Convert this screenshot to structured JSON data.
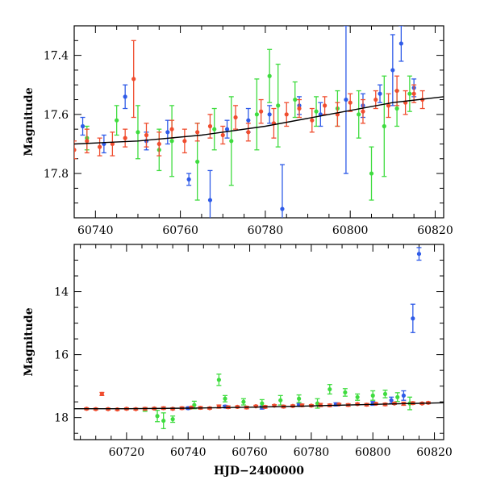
{
  "chart_data": [
    {
      "type": "scatter",
      "title": "",
      "xlabel": "",
      "ylabel": "Magnitude",
      "xlim": [
        60735,
        60822
      ],
      "ylim": [
        17.3,
        17.95
      ],
      "y_inverted": true,
      "xticks": [
        60740,
        60760,
        60780,
        60800,
        60820
      ],
      "yticks": [
        17.4,
        17.6,
        17.8
      ],
      "grid": false,
      "legend": "none",
      "series": [
        {
          "color": "#2f5be8",
          "points": [
            [
              60737,
              17.64,
              0.03
            ],
            [
              60742,
              17.7,
              0.03
            ],
            [
              60747,
              17.54,
              0.04
            ],
            [
              60752,
              17.69,
              0.03
            ],
            [
              60757,
              17.66,
              0.04
            ],
            [
              60762,
              17.82,
              0.02
            ],
            [
              60767,
              17.89,
              0.1
            ],
            [
              60771,
              17.65,
              0.03
            ],
            [
              60776,
              17.62,
              0.04
            ],
            [
              60781,
              17.6,
              0.03
            ],
            [
              60784,
              17.92,
              0.15
            ],
            [
              60788,
              17.57,
              0.03
            ],
            [
              60793,
              17.6,
              0.04
            ],
            [
              60799,
              17.55,
              0.25
            ],
            [
              60803,
              17.57,
              0.04
            ],
            [
              60807,
              17.53,
              0.03
            ],
            [
              60810,
              17.45,
              0.12
            ],
            [
              60812,
              17.36,
              0.06
            ],
            [
              60815,
              17.51,
              0.03
            ]
          ]
        },
        {
          "color": "#3fdc3f",
          "points": [
            [
              60738,
              17.68,
              0.04
            ],
            [
              60745,
              17.62,
              0.05
            ],
            [
              60750,
              17.66,
              0.09
            ],
            [
              60755,
              17.72,
              0.07
            ],
            [
              60758,
              17.69,
              0.12
            ],
            [
              60764,
              17.76,
              0.13
            ],
            [
              60768,
              17.65,
              0.07
            ],
            [
              60772,
              17.69,
              0.15
            ],
            [
              60778,
              17.6,
              0.12
            ],
            [
              60781,
              17.47,
              0.09
            ],
            [
              60783,
              17.57,
              0.14
            ],
            [
              60787,
              17.55,
              0.06
            ],
            [
              60792,
              17.59,
              0.05
            ],
            [
              60797,
              17.58,
              0.06
            ],
            [
              60802,
              17.6,
              0.08
            ],
            [
              60805,
              17.8,
              0.09
            ],
            [
              60808,
              17.64,
              0.17
            ],
            [
              60811,
              17.58,
              0.06
            ],
            [
              60814,
              17.53,
              0.06
            ]
          ]
        },
        {
          "color": "#f04d2f",
          "points": [
            [
              60735,
              17.72,
              0.03
            ],
            [
              60738,
              17.69,
              0.04
            ],
            [
              60741,
              17.71,
              0.03
            ],
            [
              60744,
              17.7,
              0.04
            ],
            [
              60747,
              17.68,
              0.03
            ],
            [
              60749,
              17.48,
              0.13
            ],
            [
              60752,
              17.67,
              0.04
            ],
            [
              60755,
              17.7,
              0.04
            ],
            [
              60758,
              17.65,
              0.03
            ],
            [
              60761,
              17.69,
              0.04
            ],
            [
              60764,
              17.66,
              0.03
            ],
            [
              60767,
              17.64,
              0.04
            ],
            [
              60770,
              17.67,
              0.03
            ],
            [
              60773,
              17.61,
              0.04
            ],
            [
              60776,
              17.66,
              0.03
            ],
            [
              60779,
              17.59,
              0.04
            ],
            [
              60782,
              17.63,
              0.05
            ],
            [
              60785,
              17.6,
              0.04
            ],
            [
              60788,
              17.58,
              0.03
            ],
            [
              60791,
              17.62,
              0.04
            ],
            [
              60794,
              17.57,
              0.03
            ],
            [
              60797,
              17.6,
              0.04
            ],
            [
              60800,
              17.56,
              0.03
            ],
            [
              60803,
              17.59,
              0.04
            ],
            [
              60806,
              17.55,
              0.03
            ],
            [
              60809,
              17.57,
              0.04
            ],
            [
              60811,
              17.52,
              0.05
            ],
            [
              60813,
              17.56,
              0.04
            ],
            [
              60815,
              17.53,
              0.03
            ],
            [
              60817,
              17.55,
              0.03
            ]
          ]
        }
      ],
      "model_curve": [
        [
          60735,
          17.7
        ],
        [
          60750,
          17.69
        ],
        [
          60765,
          17.67
        ],
        [
          60780,
          17.64
        ],
        [
          60795,
          17.6
        ],
        [
          60810,
          17.56
        ],
        [
          60822,
          17.54
        ]
      ]
    },
    {
      "type": "scatter",
      "title": "",
      "xlabel": "HJD−2400000",
      "ylabel": "Magnitude",
      "xlim": [
        60703,
        60823
      ],
      "ylim": [
        12.5,
        18.7
      ],
      "y_inverted": true,
      "xticks": [
        60720,
        60740,
        60760,
        60780,
        60800,
        60820
      ],
      "yticks": [
        14,
        16,
        18
      ],
      "grid": false,
      "legend": "none",
      "series": [
        {
          "color": "#2f5be8",
          "points": [
            [
              60740,
              17.7,
              0.04
            ],
            [
              60752,
              17.65,
              0.04
            ],
            [
              60764,
              17.68,
              0.05
            ],
            [
              60776,
              17.6,
              0.04
            ],
            [
              60788,
              17.58,
              0.05
            ],
            [
              60800,
              17.55,
              0.06
            ],
            [
              60806,
              17.45,
              0.1
            ],
            [
              60810,
              17.3,
              0.15
            ],
            [
              60813,
              14.85,
              0.45
            ],
            [
              60815,
              12.8,
              0.2
            ]
          ]
        },
        {
          "color": "#3fdc3f",
          "points": [
            [
              60726,
              17.75,
              0.05
            ],
            [
              60730,
              17.95,
              0.18
            ],
            [
              60732,
              18.1,
              0.25
            ],
            [
              60735,
              18.05,
              0.1
            ],
            [
              60742,
              17.6,
              0.12
            ],
            [
              60750,
              16.8,
              0.18
            ],
            [
              60752,
              17.4,
              0.1
            ],
            [
              60758,
              17.5,
              0.1
            ],
            [
              60764,
              17.55,
              0.12
            ],
            [
              60770,
              17.45,
              0.15
            ],
            [
              60776,
              17.4,
              0.12
            ],
            [
              60782,
              17.55,
              0.15
            ],
            [
              60786,
              17.1,
              0.15
            ],
            [
              60791,
              17.2,
              0.12
            ],
            [
              60795,
              17.35,
              0.1
            ],
            [
              60800,
              17.3,
              0.15
            ],
            [
              60804,
              17.25,
              0.12
            ],
            [
              60808,
              17.35,
              0.14
            ],
            [
              60812,
              17.55,
              0.2
            ]
          ]
        },
        {
          "color": "#f04d2f",
          "points": [
            [
              60707,
              17.72,
              0.03
            ],
            [
              60710,
              17.73,
              0.03
            ],
            [
              60712,
              17.25,
              0.05
            ],
            [
              60714,
              17.73,
              0.03
            ],
            [
              60717,
              17.74,
              0.03
            ],
            [
              60720,
              17.72,
              0.03
            ],
            [
              60723,
              17.73,
              0.03
            ],
            [
              60726,
              17.72,
              0.04
            ],
            [
              60729,
              17.71,
              0.03
            ],
            [
              60732,
              17.7,
              0.04
            ],
            [
              60735,
              17.72,
              0.03
            ],
            [
              60738,
              17.7,
              0.04
            ],
            [
              60741,
              17.68,
              0.03
            ],
            [
              60744,
              17.69,
              0.04
            ],
            [
              60747,
              17.7,
              0.03
            ],
            [
              60750,
              17.65,
              0.05
            ],
            [
              60753,
              17.67,
              0.04
            ],
            [
              60756,
              17.66,
              0.03
            ],
            [
              60759,
              17.68,
              0.04
            ],
            [
              60762,
              17.64,
              0.03
            ],
            [
              60765,
              17.66,
              0.04
            ],
            [
              60768,
              17.62,
              0.03
            ],
            [
              60771,
              17.65,
              0.04
            ],
            [
              60774,
              17.63,
              0.03
            ],
            [
              60777,
              17.61,
              0.04
            ],
            [
              60780,
              17.62,
              0.03
            ],
            [
              60783,
              17.6,
              0.05
            ],
            [
              60786,
              17.61,
              0.04
            ],
            [
              60789,
              17.58,
              0.03
            ],
            [
              60792,
              17.6,
              0.04
            ],
            [
              60795,
              17.57,
              0.03
            ],
            [
              60798,
              17.59,
              0.04
            ],
            [
              60801,
              17.56,
              0.03
            ],
            [
              60804,
              17.58,
              0.04
            ],
            [
              60807,
              17.55,
              0.03
            ],
            [
              60810,
              17.56,
              0.05
            ],
            [
              60813,
              17.54,
              0.04
            ],
            [
              60816,
              17.55,
              0.03
            ],
            [
              60818,
              17.53,
              0.03
            ]
          ]
        }
      ],
      "model_curve": [
        [
          60703,
          17.72
        ],
        [
          60720,
          17.72
        ],
        [
          60740,
          17.7
        ],
        [
          60760,
          17.67
        ],
        [
          60780,
          17.63
        ],
        [
          60800,
          17.58
        ],
        [
          60823,
          17.53
        ]
      ]
    }
  ]
}
